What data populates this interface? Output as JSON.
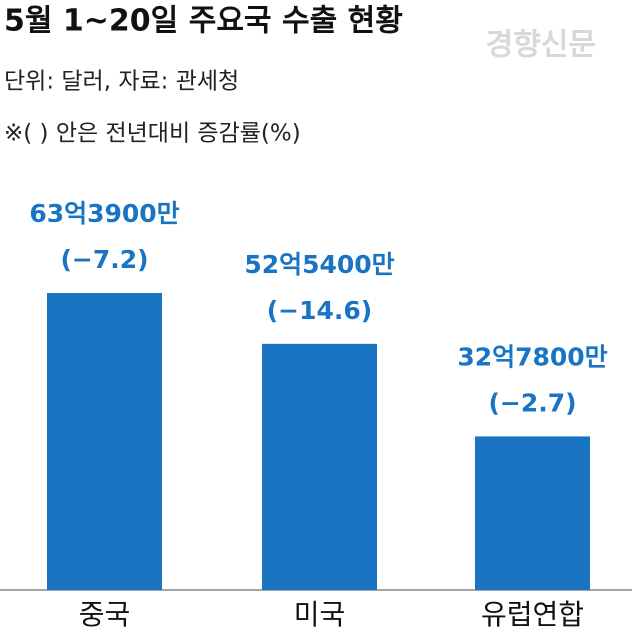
{
  "chart_data": {
    "type": "bar",
    "title": "5월 1~20일 주요국 수출 현황",
    "watermark": "경향신문",
    "subtitle": "단위: 달러, 자료: 관세청",
    "note": "※( ) 안은 전년대비 증감률(%)",
    "categories": [
      "중국",
      "미국",
      "유럽연합"
    ],
    "values": [
      6339000000,
      5254000000,
      3278000000
    ],
    "value_labels": [
      "63억3900만",
      "52억5400만",
      "32억7800만"
    ],
    "changes": [
      -7.2,
      -14.6,
      -2.7
    ],
    "change_labels": [
      "(−7.2)",
      "(−14.6)",
      "(−2.7)"
    ],
    "color": "#1a74c4"
  }
}
